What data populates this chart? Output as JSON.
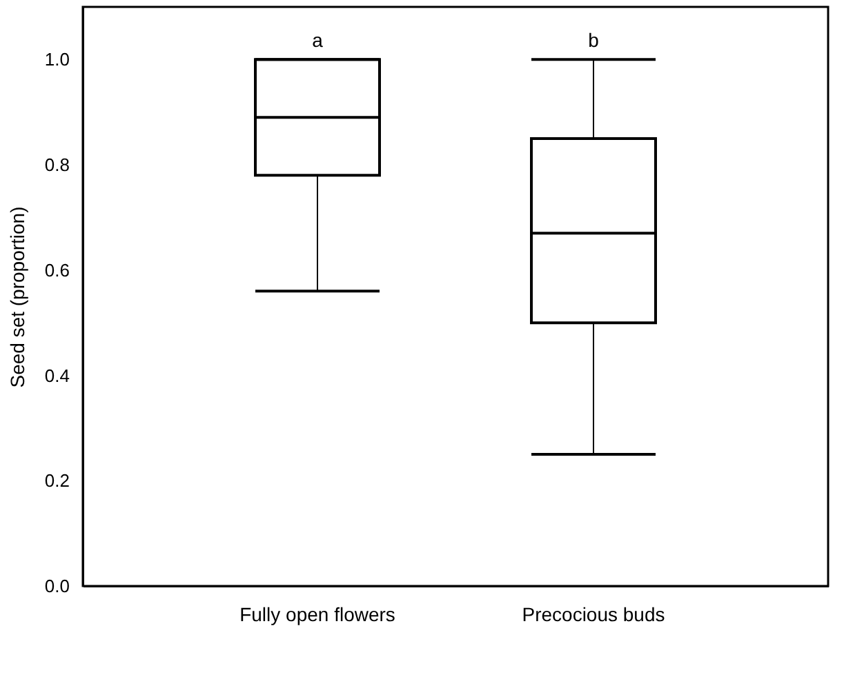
{
  "chart_data": {
    "type": "box",
    "ylabel": "Seed set (proportion)",
    "categories": [
      "Fully open flowers",
      "Precocious buds"
    ],
    "boxes": [
      {
        "low": 0.56,
        "q1": 0.78,
        "median": 0.89,
        "q3": 1.0,
        "high": 1.0
      },
      {
        "low": 0.25,
        "q1": 0.5,
        "median": 0.67,
        "q3": 0.85,
        "high": 1.0
      }
    ],
    "ylim": [
      0,
      1.1
    ],
    "yticks": [
      {
        "value": 0,
        "label": "0.0"
      },
      0.2,
      0.4,
      0.6,
      0.8,
      {
        "value": 1,
        "label": "1.0"
      }
    ],
    "grid": false,
    "annotations": [
      "a",
      "b"
    ]
  }
}
